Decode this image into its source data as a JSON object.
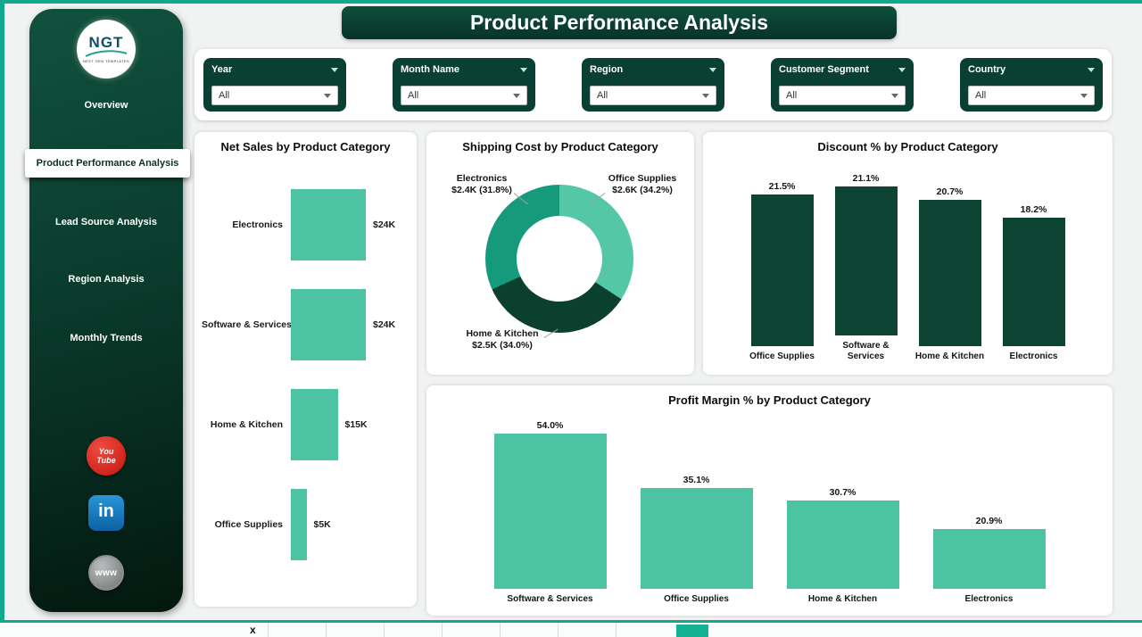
{
  "app": {
    "title": "Product Performance Analysis"
  },
  "theme": {
    "accent_teal": "#10a98c",
    "dark_green": "#0a4033",
    "bar_teal": "#4cc3a3",
    "bar_dark": "#0d4434"
  },
  "sidebar": {
    "logo": {
      "text": "NGT",
      "subtext": "NEXT GEN TEMPLATES"
    },
    "items": [
      {
        "label": "Overview",
        "active": false
      },
      {
        "label": "Product Performance Analysis",
        "active": true
      },
      {
        "label": "Lead Source Analysis",
        "active": false
      },
      {
        "label": "Region Analysis",
        "active": false
      },
      {
        "label": "Monthly Trends",
        "active": false
      }
    ],
    "social": {
      "youtube": {
        "line1": "You",
        "line2": "Tube"
      },
      "linkedin": {
        "label": "in"
      },
      "website": {
        "label": "www"
      }
    }
  },
  "filters": [
    {
      "label": "Year",
      "value": "All"
    },
    {
      "label": "Month Name",
      "value": "All"
    },
    {
      "label": "Region",
      "value": "All"
    },
    {
      "label": "Customer Segment",
      "value": "All"
    },
    {
      "label": "Country",
      "value": "All"
    }
  ],
  "chart_data": [
    {
      "id": "net_sales",
      "type": "bar",
      "orientation": "horizontal",
      "title": "Net Sales by Product Category",
      "categories": [
        "Electronics",
        "Software & Services",
        "Home & Kitchen",
        "Office Supplies"
      ],
      "values": [
        24,
        24,
        15,
        5
      ],
      "value_labels": [
        "$24K",
        "$24K",
        "$15K",
        "$5K"
      ],
      "color": "#4cc3a3",
      "xlim": [
        0,
        24
      ]
    },
    {
      "id": "shipping_cost",
      "type": "pie",
      "title": "Shipping Cost by Product Category",
      "slices": [
        {
          "label": "Office Supplies",
          "value_label": "$2.6K (34.2%)",
          "value": 2.6,
          "pct": 34.2,
          "color": "#54c7a6"
        },
        {
          "label": "Home & Kitchen",
          "value_label": "$2.5K (34.0%)",
          "value": 2.5,
          "pct": 34.0,
          "color": "#0b3f2e"
        },
        {
          "label": "Electronics",
          "value_label": "$2.4K (31.8%)",
          "value": 2.4,
          "pct": 31.8,
          "color": "#169a7c"
        }
      ]
    },
    {
      "id": "discount",
      "type": "bar",
      "orientation": "vertical",
      "title": "Discount % by Product Category",
      "categories": [
        "Office Supplies",
        "Software & Services",
        "Home & Kitchen",
        "Electronics"
      ],
      "values": [
        21.5,
        21.1,
        20.7,
        18.2
      ],
      "value_labels": [
        "21.5%",
        "21.1%",
        "20.7%",
        "18.2%"
      ],
      "color": "#0d4434",
      "ylim": [
        0,
        21.5
      ]
    },
    {
      "id": "profit_margin",
      "type": "bar",
      "orientation": "vertical",
      "title": "Profit Margin % by Product Category",
      "categories": [
        "Software & Services",
        "Office Supplies",
        "Home & Kitchen",
        "Electronics"
      ],
      "values": [
        54.0,
        35.1,
        30.7,
        20.9
      ],
      "value_labels": [
        "54.0%",
        "35.1%",
        "30.7%",
        "20.9%"
      ],
      "color": "#4cc3a3",
      "ylim": [
        0,
        54
      ]
    }
  ],
  "footer": {
    "cell_label": "x"
  }
}
